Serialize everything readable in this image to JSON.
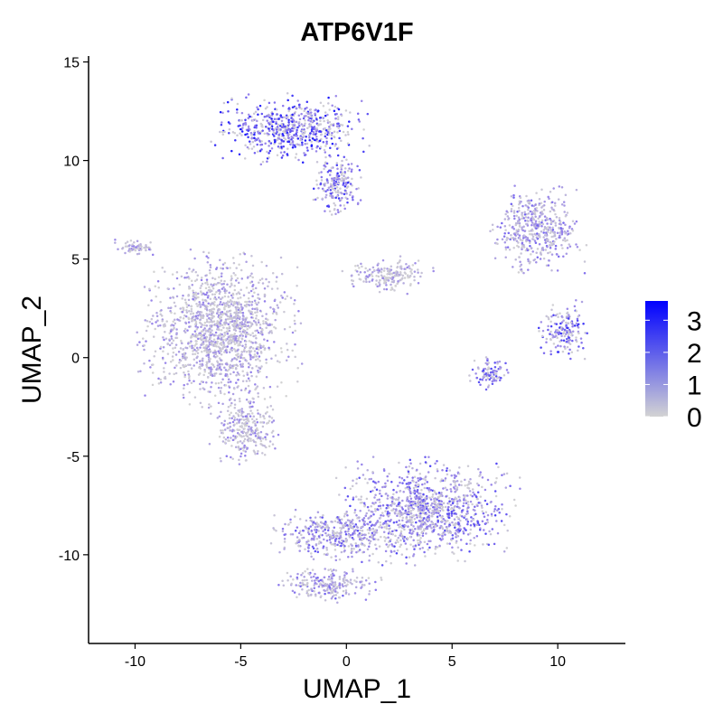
{
  "chart_data": {
    "type": "scatter",
    "title": "ATP6V1F",
    "xlabel": "UMAP_1",
    "ylabel": "UMAP_2",
    "xlim": [
      -12.2,
      13.2
    ],
    "ylim": [
      -14.5,
      15.3
    ],
    "xticks": [
      -10,
      -5,
      0,
      5,
      10
    ],
    "yticks": [
      -10,
      -5,
      0,
      5,
      10,
      15
    ],
    "grid": false,
    "color_scale": {
      "low_color": "#d3d3d3",
      "high_color": "#0000ff",
      "range": [
        0,
        3.6
      ],
      "ticks": [
        0,
        1,
        2,
        3
      ],
      "legend_position": "right"
    },
    "clusters": [
      {
        "label": "top cluster",
        "center": [
          -2.6,
          11.6
        ],
        "spread": [
          2.8,
          1.3
        ],
        "mean_expression": 2.3
      },
      {
        "label": "top cluster tail",
        "center": [
          -0.5,
          8.8
        ],
        "spread": [
          0.9,
          1.3
        ],
        "mean_expression": 2.0
      },
      {
        "label": "left large cluster",
        "center": [
          -6.0,
          1.3
        ],
        "spread": [
          2.8,
          3.0
        ],
        "mean_expression": 0.9
      },
      {
        "label": "left cluster lower extension",
        "center": [
          -4.8,
          -3.6
        ],
        "spread": [
          1.2,
          1.3
        ],
        "mean_expression": 1.0
      },
      {
        "label": "small middle cluster",
        "center": [
          2.0,
          4.2
        ],
        "spread": [
          1.6,
          0.7
        ],
        "mean_expression": 0.8
      },
      {
        "label": "bottom large cluster",
        "center": [
          3.8,
          -7.8
        ],
        "spread": [
          3.2,
          2.0
        ],
        "mean_expression": 1.7
      },
      {
        "label": "bottom left arm",
        "center": [
          -0.5,
          -9.0
        ],
        "spread": [
          2.2,
          1.0
        ],
        "mean_expression": 1.5
      },
      {
        "label": "bottom tail",
        "center": [
          -0.8,
          -11.5
        ],
        "spread": [
          1.8,
          0.7
        ],
        "mean_expression": 1.3
      },
      {
        "label": "right upper cluster",
        "center": [
          9.0,
          6.5
        ],
        "spread": [
          1.7,
          1.6
        ],
        "mean_expression": 1.3
      },
      {
        "label": "right middle cluster",
        "center": [
          10.3,
          1.4
        ],
        "spread": [
          0.9,
          1.1
        ],
        "mean_expression": 2.0
      },
      {
        "label": "right small cluster",
        "center": [
          6.8,
          -0.8
        ],
        "spread": [
          0.9,
          0.6
        ],
        "mean_expression": 1.7
      },
      {
        "label": "far left strand",
        "center": [
          -10.0,
          5.6
        ],
        "spread": [
          0.7,
          0.3
        ],
        "mean_expression": 1.0
      }
    ]
  }
}
